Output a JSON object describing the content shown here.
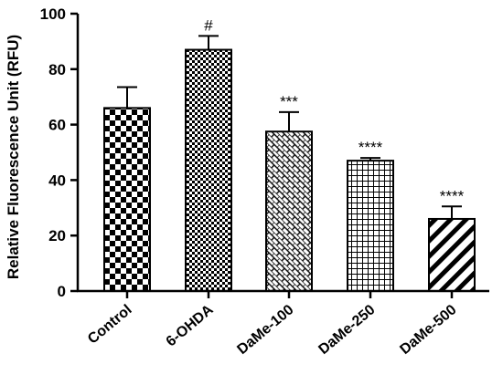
{
  "chart_data": {
    "type": "bar",
    "categories": [
      "Control",
      "6-OHDA",
      "DaMe-100",
      "DaMe-250",
      "DaMe-500"
    ],
    "values": [
      66,
      87,
      57.5,
      47,
      26
    ],
    "errors": [
      7.5,
      5,
      7,
      1,
      4.5
    ],
    "significance": [
      "",
      "#",
      "***",
      "****",
      "****"
    ],
    "patterns": [
      "checkerboard-large",
      "checkerboard-small",
      "diagonal-brick",
      "grid",
      "diagonal-stripes"
    ],
    "title": "",
    "xlabel": "",
    "ylabel": "Relative Fluorescence Unit (RFU)",
    "ylim": [
      0,
      100
    ],
    "yticks": [
      0,
      20,
      40,
      60,
      80,
      100
    ],
    "grid": false,
    "legend": "none",
    "bar_color": "#000000",
    "background": "#ffffff"
  }
}
